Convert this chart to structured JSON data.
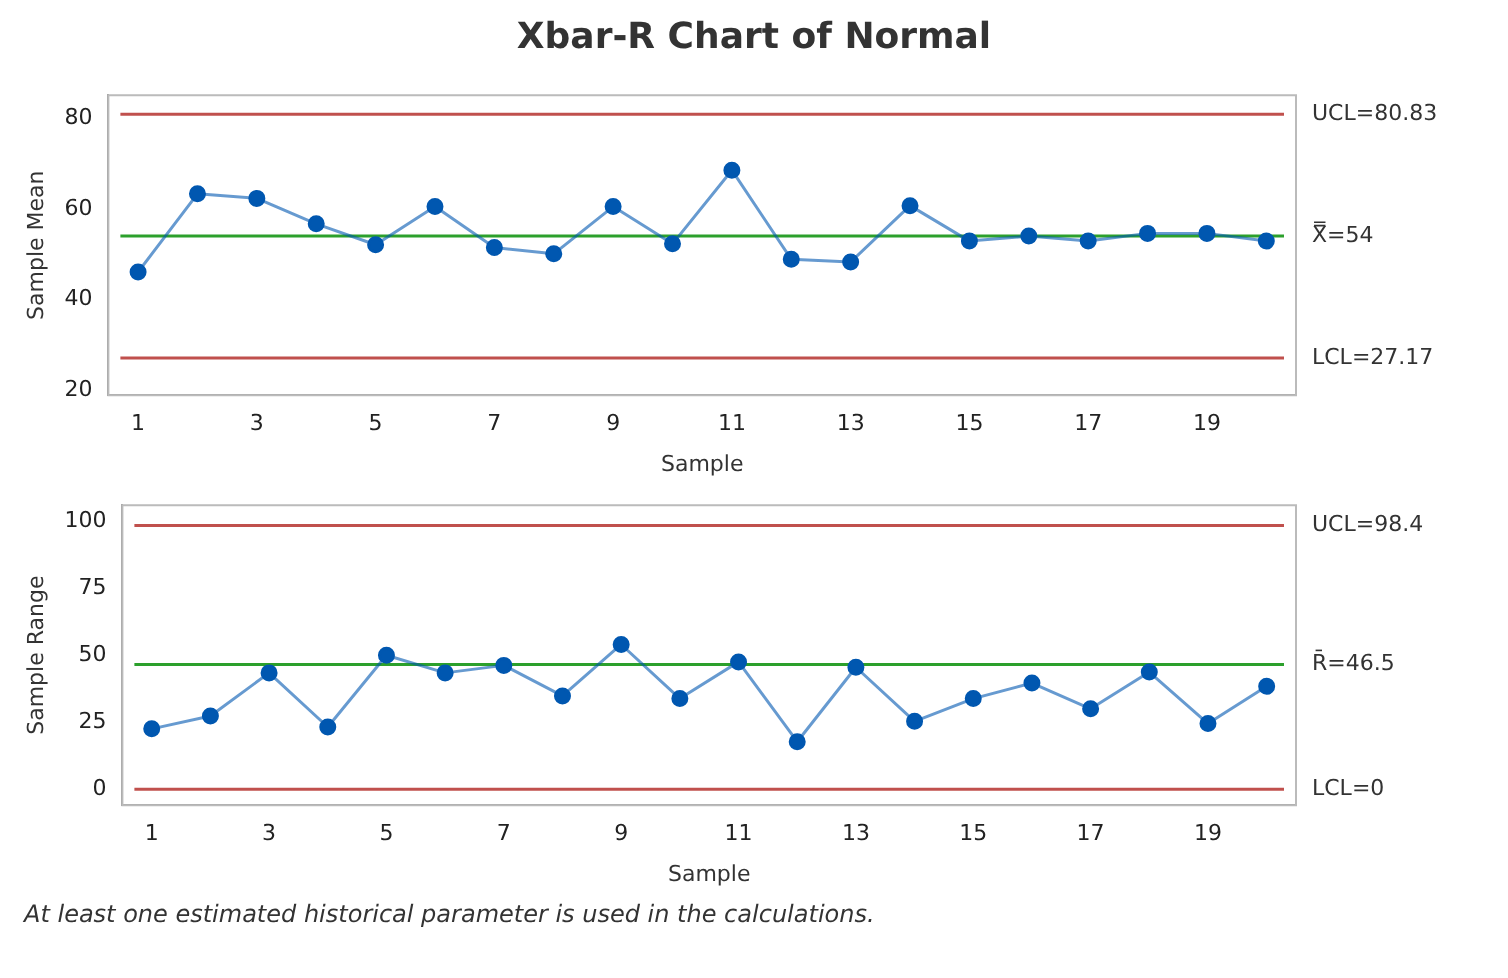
{
  "chart_data": [
    {
      "type": "line",
      "title": "Xbar-R Chart of Normal",
      "xlabel": "Sample",
      "ylabel": "Sample Mean",
      "x": [
        1,
        2,
        3,
        4,
        5,
        6,
        7,
        8,
        9,
        10,
        11,
        12,
        13,
        14,
        15,
        16,
        17,
        18,
        19,
        20
      ],
      "series": [
        {
          "color": "#0057b0",
          "values": [
            46.1,
            63.3,
            62.3,
            56.7,
            52.1,
            60.5,
            51.5,
            50.1,
            60.5,
            52.3,
            68.5,
            48.9,
            48.3,
            60.7,
            52.9,
            54,
            52.9,
            54.6,
            54.6,
            52.9
          ]
        }
      ],
      "xlim": [
        0.5,
        20.5
      ],
      "xticks": [
        1,
        3,
        5,
        7,
        9,
        11,
        13,
        15,
        17,
        19
      ],
      "ylim": [
        19,
        85
      ],
      "yticks": [
        20,
        40,
        60,
        80
      ],
      "ref_lines": [
        {
          "axis": "y",
          "value": 80.83,
          "label": "UCL=80.83",
          "color": "#c0504d"
        },
        {
          "axis": "y",
          "value": 54,
          "label": "X̿=54",
          "color": "#2ca02c"
        },
        {
          "axis": "y",
          "value": 27.17,
          "label": "LCL=27.17",
          "color": "#c0504d"
        }
      ],
      "grid": false,
      "marker": "circle",
      "line_style": "solid"
    },
    {
      "type": "line",
      "xlabel": "Sample",
      "ylabel": "Sample Range",
      "x": [
        1,
        2,
        3,
        4,
        5,
        6,
        7,
        8,
        9,
        10,
        11,
        12,
        13,
        14,
        15,
        16,
        17,
        18,
        19,
        20
      ],
      "series": [
        {
          "color": "#0057b0",
          "values": [
            22.5,
            27.3,
            43.4,
            23.2,
            50,
            43.4,
            46.2,
            34.8,
            54,
            33.8,
            47.5,
            17.7,
            45.5,
            25.3,
            33.8,
            39.6,
            30,
            43.7,
            24.5,
            38.4
          ]
        }
      ],
      "xlim": [
        0.5,
        20.5
      ],
      "xticks": [
        1,
        3,
        5,
        7,
        9,
        11,
        13,
        15,
        17,
        19
      ],
      "ylim": [
        -6,
        106
      ],
      "yticks": [
        0,
        25,
        50,
        75,
        100
      ],
      "ref_lines": [
        {
          "axis": "y",
          "value": 98.4,
          "label": "UCL=98.4",
          "color": "#c0504d"
        },
        {
          "axis": "y",
          "value": 46.5,
          "label": "R̄=46.5",
          "color": "#2ca02c"
        },
        {
          "axis": "y",
          "value": 0,
          "label": "LCL=0",
          "color": "#c0504d"
        }
      ],
      "annotations": [
        "At least one estimated historical parameter is used in the calculations."
      ],
      "grid": false,
      "marker": "circle",
      "line_style": "solid"
    }
  ]
}
